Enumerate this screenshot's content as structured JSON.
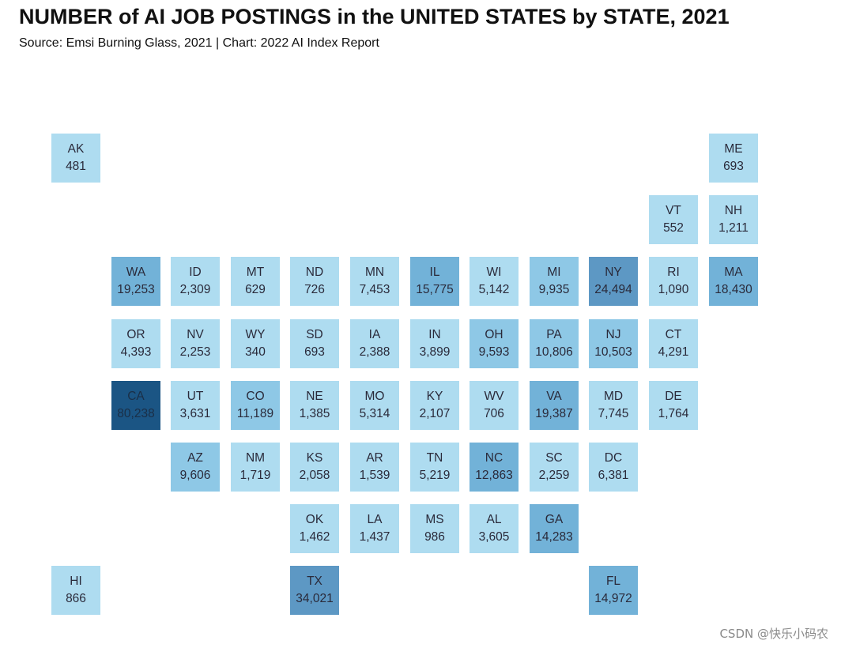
{
  "title": "NUMBER of AI JOB POSTINGS in the UNITED STATES by STATE, 2021",
  "subtitle": "Source: Emsi Burning Glass, 2021 | Chart: 2022 AI Index Report",
  "watermark": "CSDN @快乐小码农",
  "colors": {
    "light": "#aedcf0",
    "mid": "#8ec8e6",
    "midDark": "#72b2d8",
    "dark": "#5d98c4",
    "darkest": "#1b5584",
    "text": "#2a2a3a",
    "textOnDark": "#ffffff"
  },
  "chart_data": {
    "type": "tile-map",
    "title": "NUMBER of AI JOB POSTINGS in the UNITED STATES by STATE, 2021",
    "subtitle": "Source: Emsi Burning Glass, 2021 | Chart: 2022 AI Index Report",
    "states": [
      {
        "abbr": "AK",
        "label": "481",
        "value": 481,
        "col": 0,
        "row": 0
      },
      {
        "abbr": "ME",
        "label": "693",
        "value": 693,
        "col": 11,
        "row": 0
      },
      {
        "abbr": "VT",
        "label": "552",
        "value": 552,
        "col": 10,
        "row": 1
      },
      {
        "abbr": "NH",
        "label": "1,211",
        "value": 1211,
        "col": 11,
        "row": 1
      },
      {
        "abbr": "WA",
        "label": "19,253",
        "value": 19253,
        "col": 1,
        "row": 2
      },
      {
        "abbr": "ID",
        "label": "2,309",
        "value": 2309,
        "col": 2,
        "row": 2
      },
      {
        "abbr": "MT",
        "label": "629",
        "value": 629,
        "col": 3,
        "row": 2
      },
      {
        "abbr": "ND",
        "label": "726",
        "value": 726,
        "col": 4,
        "row": 2
      },
      {
        "abbr": "MN",
        "label": "7,453",
        "value": 7453,
        "col": 5,
        "row": 2
      },
      {
        "abbr": "IL",
        "label": "15,775",
        "value": 15775,
        "col": 6,
        "row": 2
      },
      {
        "abbr": "WI",
        "label": "5,142",
        "value": 5142,
        "col": 7,
        "row": 2
      },
      {
        "abbr": "MI",
        "label": "9,935",
        "value": 9935,
        "col": 8,
        "row": 2
      },
      {
        "abbr": "NY",
        "label": "24,494",
        "value": 24494,
        "col": 9,
        "row": 2
      },
      {
        "abbr": "RI",
        "label": "1,090",
        "value": 1090,
        "col": 10,
        "row": 2
      },
      {
        "abbr": "MA",
        "label": "18,430",
        "value": 18430,
        "col": 11,
        "row": 2
      },
      {
        "abbr": "OR",
        "label": "4,393",
        "value": 4393,
        "col": 1,
        "row": 3
      },
      {
        "abbr": "NV",
        "label": "2,253",
        "value": 2253,
        "col": 2,
        "row": 3
      },
      {
        "abbr": "WY",
        "label": "340",
        "value": 340,
        "col": 3,
        "row": 3
      },
      {
        "abbr": "SD",
        "label": "693",
        "value": 693,
        "col": 4,
        "row": 3
      },
      {
        "abbr": "IA",
        "label": "2,388",
        "value": 2388,
        "col": 5,
        "row": 3
      },
      {
        "abbr": "IN",
        "label": "3,899",
        "value": 3899,
        "col": 6,
        "row": 3
      },
      {
        "abbr": "OH",
        "label": "9,593",
        "value": 9593,
        "col": 7,
        "row": 3
      },
      {
        "abbr": "PA",
        "label": "10,806",
        "value": 10806,
        "col": 8,
        "row": 3
      },
      {
        "abbr": "NJ",
        "label": "10,503",
        "value": 10503,
        "col": 9,
        "row": 3
      },
      {
        "abbr": "CT",
        "label": "4,291",
        "value": 4291,
        "col": 10,
        "row": 3
      },
      {
        "abbr": "CA",
        "label": "80,238",
        "value": 80238,
        "col": 1,
        "row": 4
      },
      {
        "abbr": "UT",
        "label": "3,631",
        "value": 3631,
        "col": 2,
        "row": 4
      },
      {
        "abbr": "CO",
        "label": "11,189",
        "value": 11189,
        "col": 3,
        "row": 4
      },
      {
        "abbr": "NE",
        "label": "1,385",
        "value": 1385,
        "col": 4,
        "row": 4
      },
      {
        "abbr": "MO",
        "label": "5,314",
        "value": 5314,
        "col": 5,
        "row": 4
      },
      {
        "abbr": "KY",
        "label": "2,107",
        "value": 2107,
        "col": 6,
        "row": 4
      },
      {
        "abbr": "WV",
        "label": "706",
        "value": 706,
        "col": 7,
        "row": 4
      },
      {
        "abbr": "VA",
        "label": "19,387",
        "value": 19387,
        "col": 8,
        "row": 4
      },
      {
        "abbr": "MD",
        "label": "7,745",
        "value": 7745,
        "col": 9,
        "row": 4
      },
      {
        "abbr": "DE",
        "label": "1,764",
        "value": 1764,
        "col": 10,
        "row": 4
      },
      {
        "abbr": "AZ",
        "label": "9,606",
        "value": 9606,
        "col": 2,
        "row": 5
      },
      {
        "abbr": "NM",
        "label": "1,719",
        "value": 1719,
        "col": 3,
        "row": 5
      },
      {
        "abbr": "KS",
        "label": "2,058",
        "value": 2058,
        "col": 4,
        "row": 5
      },
      {
        "abbr": "AR",
        "label": "1,539",
        "value": 1539,
        "col": 5,
        "row": 5
      },
      {
        "abbr": "TN",
        "label": "5,219",
        "value": 5219,
        "col": 6,
        "row": 5
      },
      {
        "abbr": "NC",
        "label": "12,863",
        "value": 12863,
        "col": 7,
        "row": 5
      },
      {
        "abbr": "SC",
        "label": "2,259",
        "value": 2259,
        "col": 8,
        "row": 5
      },
      {
        "abbr": "DC",
        "label": "6,381",
        "value": 6381,
        "col": 9,
        "row": 5
      },
      {
        "abbr": "OK",
        "label": "1,462",
        "value": 1462,
        "col": 4,
        "row": 6
      },
      {
        "abbr": "LA",
        "label": "1,437",
        "value": 1437,
        "col": 5,
        "row": 6
      },
      {
        "abbr": "MS",
        "label": "986",
        "value": 986,
        "col": 6,
        "row": 6
      },
      {
        "abbr": "AL",
        "label": "3,605",
        "value": 3605,
        "col": 7,
        "row": 6
      },
      {
        "abbr": "GA",
        "label": "14,283",
        "value": 14283,
        "col": 8,
        "row": 6
      },
      {
        "abbr": "HI",
        "label": "866",
        "value": 866,
        "col": 0,
        "row": 7
      },
      {
        "abbr": "TX",
        "label": "34,021",
        "value": 34021,
        "col": 4,
        "row": 7
      },
      {
        "abbr": "FL",
        "label": "14,972",
        "value": 14972,
        "col": 9,
        "row": 7
      }
    ]
  }
}
